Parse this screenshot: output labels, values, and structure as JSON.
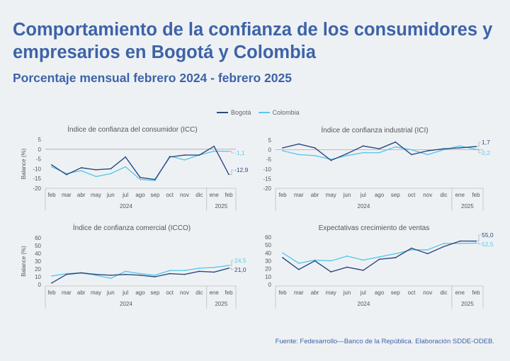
{
  "title": "Comportamiento de la confianza de los consumidores y empresarios en Bogotá y Colombia",
  "subtitle": "Porcentaje mensual febrero 2024 - febrero 2025",
  "source": "Fuente: Fedesarrollo—Banco de la República. Elaboración SDDE-ODEB.",
  "colors": {
    "bogota": "#2c4a7e",
    "colombia": "#5bc8ec",
    "title": "#3d63a8"
  },
  "legend": {
    "series_1": "Bogotá",
    "series_2": "Colombia"
  },
  "chart_data": [
    {
      "type": "line",
      "title": "Índice de confianza del consumidor (ICC)",
      "ylabel": "Balance (%)",
      "categories": [
        "feb",
        "mar",
        "abr",
        "may",
        "jun",
        "jul",
        "ago",
        "sep",
        "oct",
        "nov",
        "dic",
        "ene",
        "feb"
      ],
      "year_groups": [
        {
          "label": "2024",
          "span": 11
        },
        {
          "label": "2025",
          "span": 2
        }
      ],
      "ylim": [
        -20,
        5
      ],
      "yticks": [
        5,
        0,
        -5,
        -10,
        -15,
        -20
      ],
      "zero_line": true,
      "series": [
        {
          "name": "Bogotá",
          "values": [
            -8,
            -13,
            -9.5,
            -10.5,
            -10,
            -4,
            -14.5,
            -15.5,
            -4,
            -3,
            -3,
            1.5,
            -12.9
          ]
        },
        {
          "name": "Colombia",
          "values": [
            -9,
            -12.5,
            -11,
            -14,
            -12.5,
            -9,
            -15.5,
            -16,
            -3.5,
            -5.5,
            -3,
            -1,
            -1.1
          ]
        }
      ],
      "end_labels": [
        "-12,9",
        "-1,1"
      ]
    },
    {
      "type": "line",
      "title": "Índice de confianza industrial (ICI)",
      "ylabel": "",
      "categories": [
        "feb",
        "mar",
        "abr",
        "may",
        "jun",
        "jul",
        "ago",
        "sep",
        "oct",
        "nov",
        "dic",
        "ene",
        "feb"
      ],
      "year_groups": [
        {
          "label": "2024",
          "span": 11
        },
        {
          "label": "2025",
          "span": 2
        }
      ],
      "ylim": [
        -20,
        5
      ],
      "yticks": [
        5,
        0,
        -5,
        -10,
        -15,
        -20
      ],
      "zero_line": true,
      "series": [
        {
          "name": "Bogotá",
          "values": [
            1,
            3,
            1,
            -5.5,
            -2,
            2,
            0.5,
            4,
            -2.5,
            -0.5,
            0.5,
            1,
            1.7
          ]
        },
        {
          "name": "Colombia",
          "values": [
            -0.5,
            -2.5,
            -3,
            -5,
            -3,
            -1.5,
            -1.5,
            1.5,
            0,
            -2.5,
            0,
            2,
            0.2
          ]
        }
      ],
      "end_labels": [
        "1,7",
        "0,2"
      ]
    },
    {
      "type": "line",
      "title": "Índice de confianza comercial (ICCO)",
      "ylabel": "Balance (%)",
      "categories": [
        "feb",
        "mar",
        "abr",
        "may",
        "jun",
        "jul",
        "ago",
        "sep",
        "oct",
        "nov",
        "dic",
        "ene",
        "feb"
      ],
      "year_groups": [
        {
          "label": "2024",
          "span": 11
        },
        {
          "label": "2025",
          "span": 2
        }
      ],
      "ylim": [
        0,
        60
      ],
      "yticks": [
        60,
        50,
        40,
        30,
        20,
        10,
        0
      ],
      "zero_line": false,
      "series": [
        {
          "name": "Bogotá",
          "values": [
            2,
            13,
            15,
            13,
            12,
            13,
            12,
            10,
            14,
            13,
            17,
            16,
            21.0
          ]
        },
        {
          "name": "Colombia",
          "values": [
            11,
            14,
            15,
            12,
            8,
            17,
            14,
            12,
            18,
            18,
            21,
            22,
            24.5
          ]
        }
      ],
      "end_labels": [
        "21,0",
        "24,5"
      ]
    },
    {
      "type": "line",
      "title": "Expectativas crecimiento de ventas",
      "ylabel": "",
      "categories": [
        "feb",
        "mar",
        "abr",
        "may",
        "jun",
        "jul",
        "ago",
        "sep",
        "oct",
        "nov",
        "dic",
        "ene",
        "feb"
      ],
      "year_groups": [
        {
          "label": "2024",
          "span": 11
        },
        {
          "label": "2025",
          "span": 2
        }
      ],
      "ylim": [
        0,
        60
      ],
      "yticks": [
        60,
        50,
        40,
        30,
        20,
        10,
        0
      ],
      "zero_line": false,
      "series": [
        {
          "name": "Bogotá",
          "values": [
            34,
            19,
            30,
            16,
            22,
            18,
            32,
            34,
            46,
            39,
            48,
            55,
            55.0
          ]
        },
        {
          "name": "Colombia",
          "values": [
            40,
            27,
            31,
            30,
            36,
            31,
            35,
            39,
            44,
            44,
            52,
            52,
            52.5
          ]
        }
      ],
      "end_labels": [
        "55,0",
        "52,5"
      ]
    }
  ]
}
